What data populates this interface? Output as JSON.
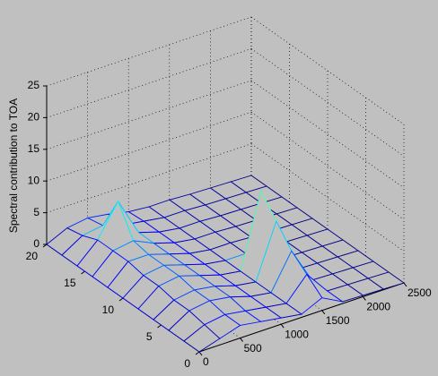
{
  "chart_data": {
    "type": "mesh",
    "zlabel": "Spectral contribution to TOA",
    "x": [
      0,
      250,
      500,
      750,
      1000,
      1250,
      1500,
      1750,
      2000,
      2250,
      2500
    ],
    "y": [
      0,
      2,
      4,
      6,
      8,
      10,
      12,
      14,
      16,
      18,
      20
    ],
    "z": [
      [
        0,
        1,
        2,
        1.5,
        1,
        0.5,
        2,
        0.3,
        0.2,
        0.1,
        0
      ],
      [
        0,
        1.5,
        2,
        1.5,
        1,
        0.5,
        4,
        0.3,
        0.2,
        0.1,
        0
      ],
      [
        0,
        2,
        2.5,
        2,
        1,
        0.5,
        6,
        0.3,
        0.2,
        0.1,
        0
      ],
      [
        0,
        2,
        2.5,
        2,
        1,
        0.5,
        9,
        0.3,
        0.2,
        0.1,
        0
      ],
      [
        0,
        2.5,
        3,
        2,
        1,
        0.5,
        12,
        0.3,
        0.2,
        0.1,
        0
      ],
      [
        0,
        2.5,
        3,
        2,
        1,
        0.5,
        0.5,
        0.3,
        0.2,
        0.1,
        0
      ],
      [
        0,
        3,
        3,
        2,
        1,
        0.5,
        0.5,
        0.3,
        0.2,
        0.1,
        0
      ],
      [
        0,
        3,
        3.5,
        2,
        1,
        0.5,
        0.5,
        0.3,
        0.2,
        0.1,
        0
      ],
      [
        0,
        3,
        8,
        2,
        1,
        0.5,
        0.5,
        0.3,
        0.2,
        0.1,
        0
      ],
      [
        0,
        2,
        2.5,
        1.5,
        1,
        0.5,
        0.5,
        0.3,
        0.2,
        0.1,
        0
      ],
      [
        0,
        1.5,
        2,
        1.5,
        0.8,
        0.5,
        0.5,
        0.3,
        0.2,
        0.1,
        0
      ]
    ],
    "xlim": [
      0,
      2500
    ],
    "ylim": [
      0,
      20
    ],
    "zlim": [
      0,
      25
    ],
    "xticks": [
      0,
      500,
      1000,
      1500,
      2000,
      2500
    ],
    "yticks": [
      0,
      5,
      10,
      15,
      20
    ],
    "zticks": [
      0,
      5,
      10,
      15,
      20,
      25
    ],
    "grid": true,
    "colormap": "jet"
  }
}
